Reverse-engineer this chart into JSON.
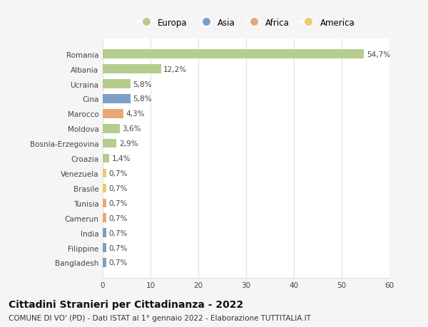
{
  "countries": [
    "Romania",
    "Albania",
    "Ucraina",
    "Cina",
    "Marocco",
    "Moldova",
    "Bosnia-Erzegovina",
    "Croazia",
    "Venezuela",
    "Brasile",
    "Tunisia",
    "Camerun",
    "India",
    "Filippine",
    "Bangladesh"
  ],
  "values": [
    54.7,
    12.2,
    5.8,
    5.8,
    4.3,
    3.6,
    2.9,
    1.4,
    0.7,
    0.7,
    0.7,
    0.7,
    0.7,
    0.7,
    0.7
  ],
  "labels": [
    "54,7%",
    "12,2%",
    "5,8%",
    "5,8%",
    "4,3%",
    "3,6%",
    "2,9%",
    "1,4%",
    "0,7%",
    "0,7%",
    "0,7%",
    "0,7%",
    "0,7%",
    "0,7%",
    "0,7%"
  ],
  "continents": [
    "Europa",
    "Europa",
    "Europa",
    "Asia",
    "Africa",
    "Europa",
    "Europa",
    "Europa",
    "America",
    "America",
    "Africa",
    "Africa",
    "Asia",
    "Asia",
    "Asia"
  ],
  "colors": {
    "Europa": "#b5cc8e",
    "Asia": "#7b9fc7",
    "Africa": "#e8a878",
    "America": "#e8cc6e"
  },
  "xlim": [
    0,
    60
  ],
  "xticks": [
    0,
    10,
    20,
    30,
    40,
    50,
    60
  ],
  "title": "Cittadini Stranieri per Cittadinanza - 2022",
  "subtitle": "COMUNE DI VO' (PD) - Dati ISTAT al 1° gennaio 2022 - Elaborazione TUTTITALIA.IT",
  "background_color": "#f5f5f5",
  "plot_bg_color": "#ffffff",
  "grid_color": "#e0e0e0",
  "bar_height": 0.6,
  "title_fontsize": 10,
  "subtitle_fontsize": 7.5,
  "tick_fontsize": 7.5,
  "label_fontsize": 7.5,
  "legend_fontsize": 8.5
}
